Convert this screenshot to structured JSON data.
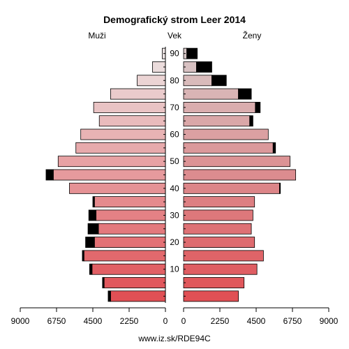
{
  "chart_data": {
    "type": "bar",
    "title": "Demografický strom Leer 2014",
    "left_label": "Muži",
    "center_label": "Vek",
    "right_label": "Ženy",
    "footer": "www.iz.sk/RDE94C",
    "x_tick_labels": [
      "9000",
      "6750",
      "4500",
      "2250",
      "0",
      "0",
      "2250",
      "4500",
      "6750",
      "9000"
    ],
    "age_tick_labels": [
      "10",
      "20",
      "30",
      "40",
      "50",
      "60",
      "70",
      "80",
      "90"
    ],
    "xlim": [
      0,
      9000
    ],
    "age_groups": [
      "0-4",
      "5-9",
      "10-14",
      "15-19",
      "20-24",
      "25-29",
      "30-34",
      "35-39",
      "40-44",
      "45-49",
      "50-54",
      "55-59",
      "60-64",
      "65-69",
      "70-74",
      "75-79",
      "80-84",
      "85-89",
      "90+"
    ],
    "series": [
      {
        "name": "Muži",
        "base": [
          3400,
          3800,
          4550,
          5050,
          4400,
          4150,
          4300,
          4400,
          5950,
          6950,
          6650,
          5550,
          5250,
          4100,
          4450,
          3400,
          1750,
          800,
          200
        ],
        "excess": [
          150,
          100,
          150,
          100,
          550,
          650,
          450,
          100,
          0,
          450,
          0,
          0,
          0,
          0,
          0,
          0,
          0,
          0,
          0
        ]
      },
      {
        "name": "Ženy",
        "base": [
          3400,
          3750,
          4550,
          4950,
          4400,
          4200,
          4300,
          4400,
          5950,
          6950,
          6600,
          5550,
          5250,
          4100,
          4450,
          3400,
          1750,
          800,
          200
        ],
        "excess": [
          0,
          0,
          0,
          0,
          0,
          0,
          0,
          0,
          50,
          0,
          0,
          150,
          0,
          200,
          300,
          800,
          900,
          950,
          650
        ]
      }
    ]
  }
}
